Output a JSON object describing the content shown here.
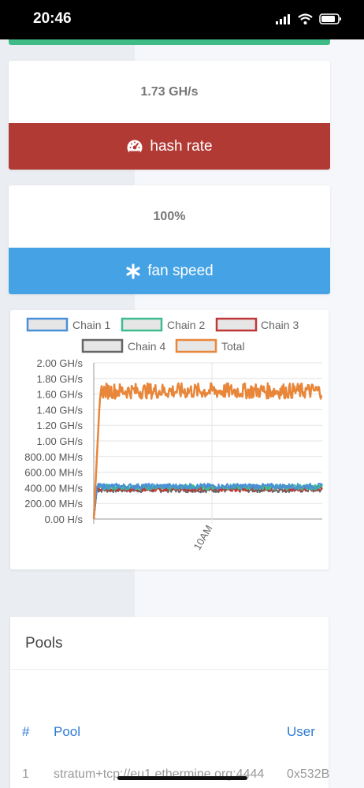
{
  "status_bar": {
    "time": "20:46"
  },
  "hash_rate_card": {
    "value": "1.73 GH/s",
    "label": "hash rate",
    "icon": "speedometer-icon",
    "color": "#b13a35"
  },
  "fan_speed_card": {
    "value": "100%",
    "label": "fan speed",
    "icon": "fan-asterisk-icon",
    "color": "#45a3e5"
  },
  "chart_data": {
    "type": "line",
    "legend": [
      "Chain 1",
      "Chain 2",
      "Chain 3",
      "Chain 4",
      "Total"
    ],
    "series_colors": [
      "#4a90d9",
      "#3dbd8e",
      "#c03737",
      "#666666",
      "#e8863a"
    ],
    "y_ticks": [
      "2.00 GH/s",
      "1.80 GH/s",
      "1.60 GH/s",
      "1.40 GH/s",
      "1.20 GH/s",
      "1.00 GH/s",
      "800.00 MH/s",
      "600.00 MH/s",
      "400.00 MH/s",
      "200.00 MH/s",
      "0.00 H/s"
    ],
    "x_ticks": [
      "10AM"
    ],
    "ylim": [
      0,
      2000
    ],
    "units": "MH/s",
    "total_range": [
      1500,
      1800
    ],
    "chain_range": [
      330,
      470
    ],
    "legend_position": "top",
    "grid": true
  },
  "pools": {
    "title": "Pools",
    "columns": [
      "#",
      "Pool",
      "User"
    ],
    "rows": [
      {
        "index": "1",
        "pool": "stratum+tcp://eu1.ethermine.org:4444",
        "user": "0x532B"
      }
    ]
  }
}
